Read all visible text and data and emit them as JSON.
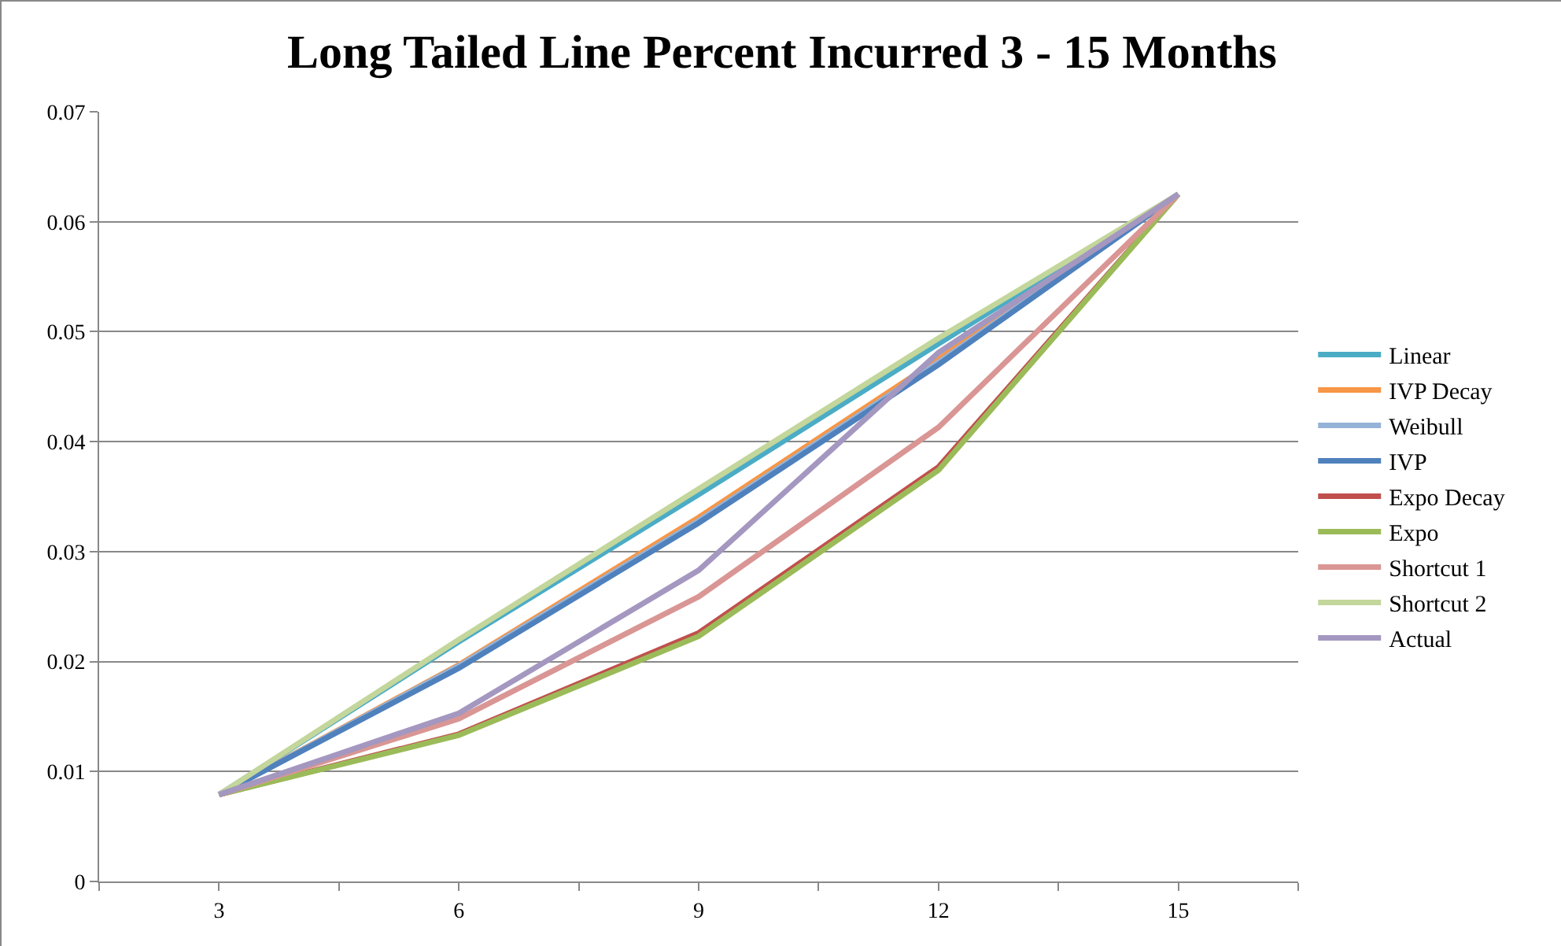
{
  "chart_data": {
    "type": "line",
    "title": "Long Tailed Line Percent Incurred 3 - 15 Months",
    "x": [
      3,
      6,
      9,
      12,
      15
    ],
    "xlim": [
      1.5,
      16.5
    ],
    "xticks": [
      {
        "value": 1.5,
        "label": null
      },
      3,
      {
        "value": 4.5,
        "label": null
      },
      6,
      {
        "value": 7.5,
        "label": null
      },
      9,
      {
        "value": 10.5,
        "label": null
      },
      12,
      {
        "value": 13.5,
        "label": null
      },
      15,
      {
        "value": 16.5,
        "label": null
      }
    ],
    "ylim": [
      0,
      0.07
    ],
    "yticks": [
      0,
      0.01,
      0.02,
      0.03,
      0.04,
      0.05,
      0.06,
      0.07
    ],
    "grid": "y",
    "legend": "right",
    "marker": "none",
    "line_style": "solid",
    "series": [
      {
        "name": "Linear",
        "color": "#4bacc6",
        "values": [
          0.0079,
          0.0218,
          0.0352,
          0.0489,
          0.0625
        ]
      },
      {
        "name": "IVP Decay",
        "color": "#f79646",
        "values": [
          0.0079,
          0.0197,
          0.0331,
          0.0475,
          0.0625
        ]
      },
      {
        "name": "Weibull",
        "color": "#95b3d7",
        "values": [
          0.0079,
          0.0196,
          0.0328,
          0.0472,
          0.0625
        ]
      },
      {
        "name": "IVP",
        "color": "#4f81bd",
        "values": [
          0.0079,
          0.0194,
          0.0326,
          0.047,
          0.0625
        ]
      },
      {
        "name": "Expo Decay",
        "color": "#c0504d",
        "values": [
          0.0079,
          0.0134,
          0.0226,
          0.0377,
          0.0625
        ]
      },
      {
        "name": "Expo",
        "color": "#9bbb59",
        "values": [
          0.0079,
          0.0133,
          0.0223,
          0.0374,
          0.0625
        ]
      },
      {
        "name": "Shortcut 1",
        "color": "#d99694",
        "values": [
          0.0079,
          0.0148,
          0.0259,
          0.0413,
          0.0625
        ]
      },
      {
        "name": "Shortcut 2",
        "color": "#c3d69b",
        "values": [
          0.0079,
          0.022,
          0.0357,
          0.0494,
          0.0625
        ]
      },
      {
        "name": "Actual",
        "color": "#a497c0",
        "values": [
          0.0079,
          0.0153,
          0.0283,
          0.0481,
          0.0625
        ]
      }
    ]
  }
}
